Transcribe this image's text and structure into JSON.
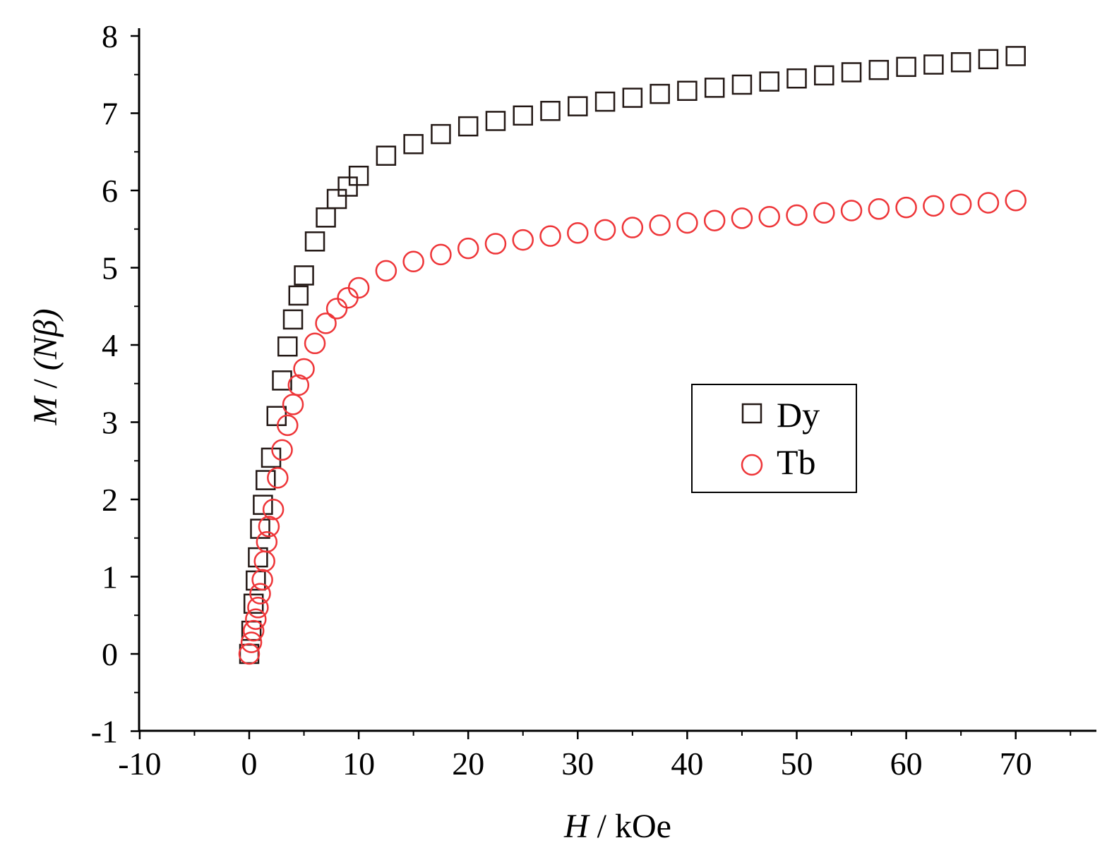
{
  "chart_data": {
    "type": "scatter",
    "title": "",
    "xlabel": {
      "var": "H",
      "unit": "kOe"
    },
    "ylabel": {
      "var": "M",
      "unit": "(Nβ)"
    },
    "xlim": [
      -10,
      77
    ],
    "ylim": [
      -1,
      8.1
    ],
    "xticks": [
      -10,
      0,
      10,
      20,
      30,
      40,
      50,
      60,
      70
    ],
    "yticks": [
      -1,
      0,
      1,
      2,
      3,
      4,
      5,
      6,
      7,
      8
    ],
    "grid": false,
    "legend": {
      "placement": "center-right",
      "entries": [
        "Dy",
        "Tb"
      ]
    },
    "series": [
      {
        "name": "Dy",
        "marker": "square",
        "color": "#231815",
        "x": [
          0,
          0.2,
          0.4,
          0.6,
          0.8,
          1.0,
          1.25,
          1.5,
          2.0,
          2.5,
          3.0,
          3.5,
          4.0,
          4.5,
          5.0,
          6.0,
          7.0,
          8.0,
          9.0,
          10,
          12.5,
          15,
          17.5,
          20,
          22.5,
          25,
          27.5,
          30,
          32.5,
          35,
          37.5,
          40,
          42.5,
          45,
          47.5,
          50,
          52.5,
          55,
          57.5,
          60,
          62.5,
          65,
          67.5,
          70
        ],
        "y": [
          0.0,
          0.3,
          0.65,
          0.95,
          1.25,
          1.62,
          1.93,
          2.25,
          2.54,
          3.08,
          3.54,
          3.98,
          4.33,
          4.64,
          4.9,
          5.34,
          5.65,
          5.89,
          6.05,
          6.19,
          6.45,
          6.6,
          6.73,
          6.83,
          6.9,
          6.97,
          7.03,
          7.09,
          7.15,
          7.2,
          7.25,
          7.29,
          7.33,
          7.37,
          7.41,
          7.45,
          7.49,
          7.53,
          7.56,
          7.6,
          7.63,
          7.66,
          7.7,
          7.74
        ]
      },
      {
        "name": "Tb",
        "marker": "circle",
        "color": "#ee3538",
        "x": [
          0,
          0.2,
          0.4,
          0.6,
          0.8,
          1.0,
          1.2,
          1.4,
          1.6,
          1.8,
          2.2,
          2.6,
          3.0,
          3.5,
          4.0,
          4.5,
          5.0,
          6.0,
          7.0,
          8.0,
          9.0,
          10,
          12.5,
          15,
          17.5,
          20,
          22.5,
          25,
          27.5,
          30,
          32.5,
          35,
          37.5,
          40,
          42.5,
          45,
          47.5,
          50,
          52.5,
          55,
          57.5,
          60,
          62.5,
          65,
          67.5,
          70
        ],
        "y": [
          0.0,
          0.15,
          0.3,
          0.45,
          0.6,
          0.78,
          0.96,
          1.2,
          1.45,
          1.65,
          1.87,
          2.28,
          2.64,
          2.96,
          3.23,
          3.48,
          3.69,
          4.02,
          4.28,
          4.47,
          4.61,
          4.74,
          4.96,
          5.08,
          5.17,
          5.25,
          5.31,
          5.36,
          5.41,
          5.45,
          5.49,
          5.52,
          5.55,
          5.58,
          5.61,
          5.64,
          5.66,
          5.68,
          5.71,
          5.74,
          5.76,
          5.78,
          5.8,
          5.82,
          5.84,
          5.87
        ]
      }
    ]
  }
}
